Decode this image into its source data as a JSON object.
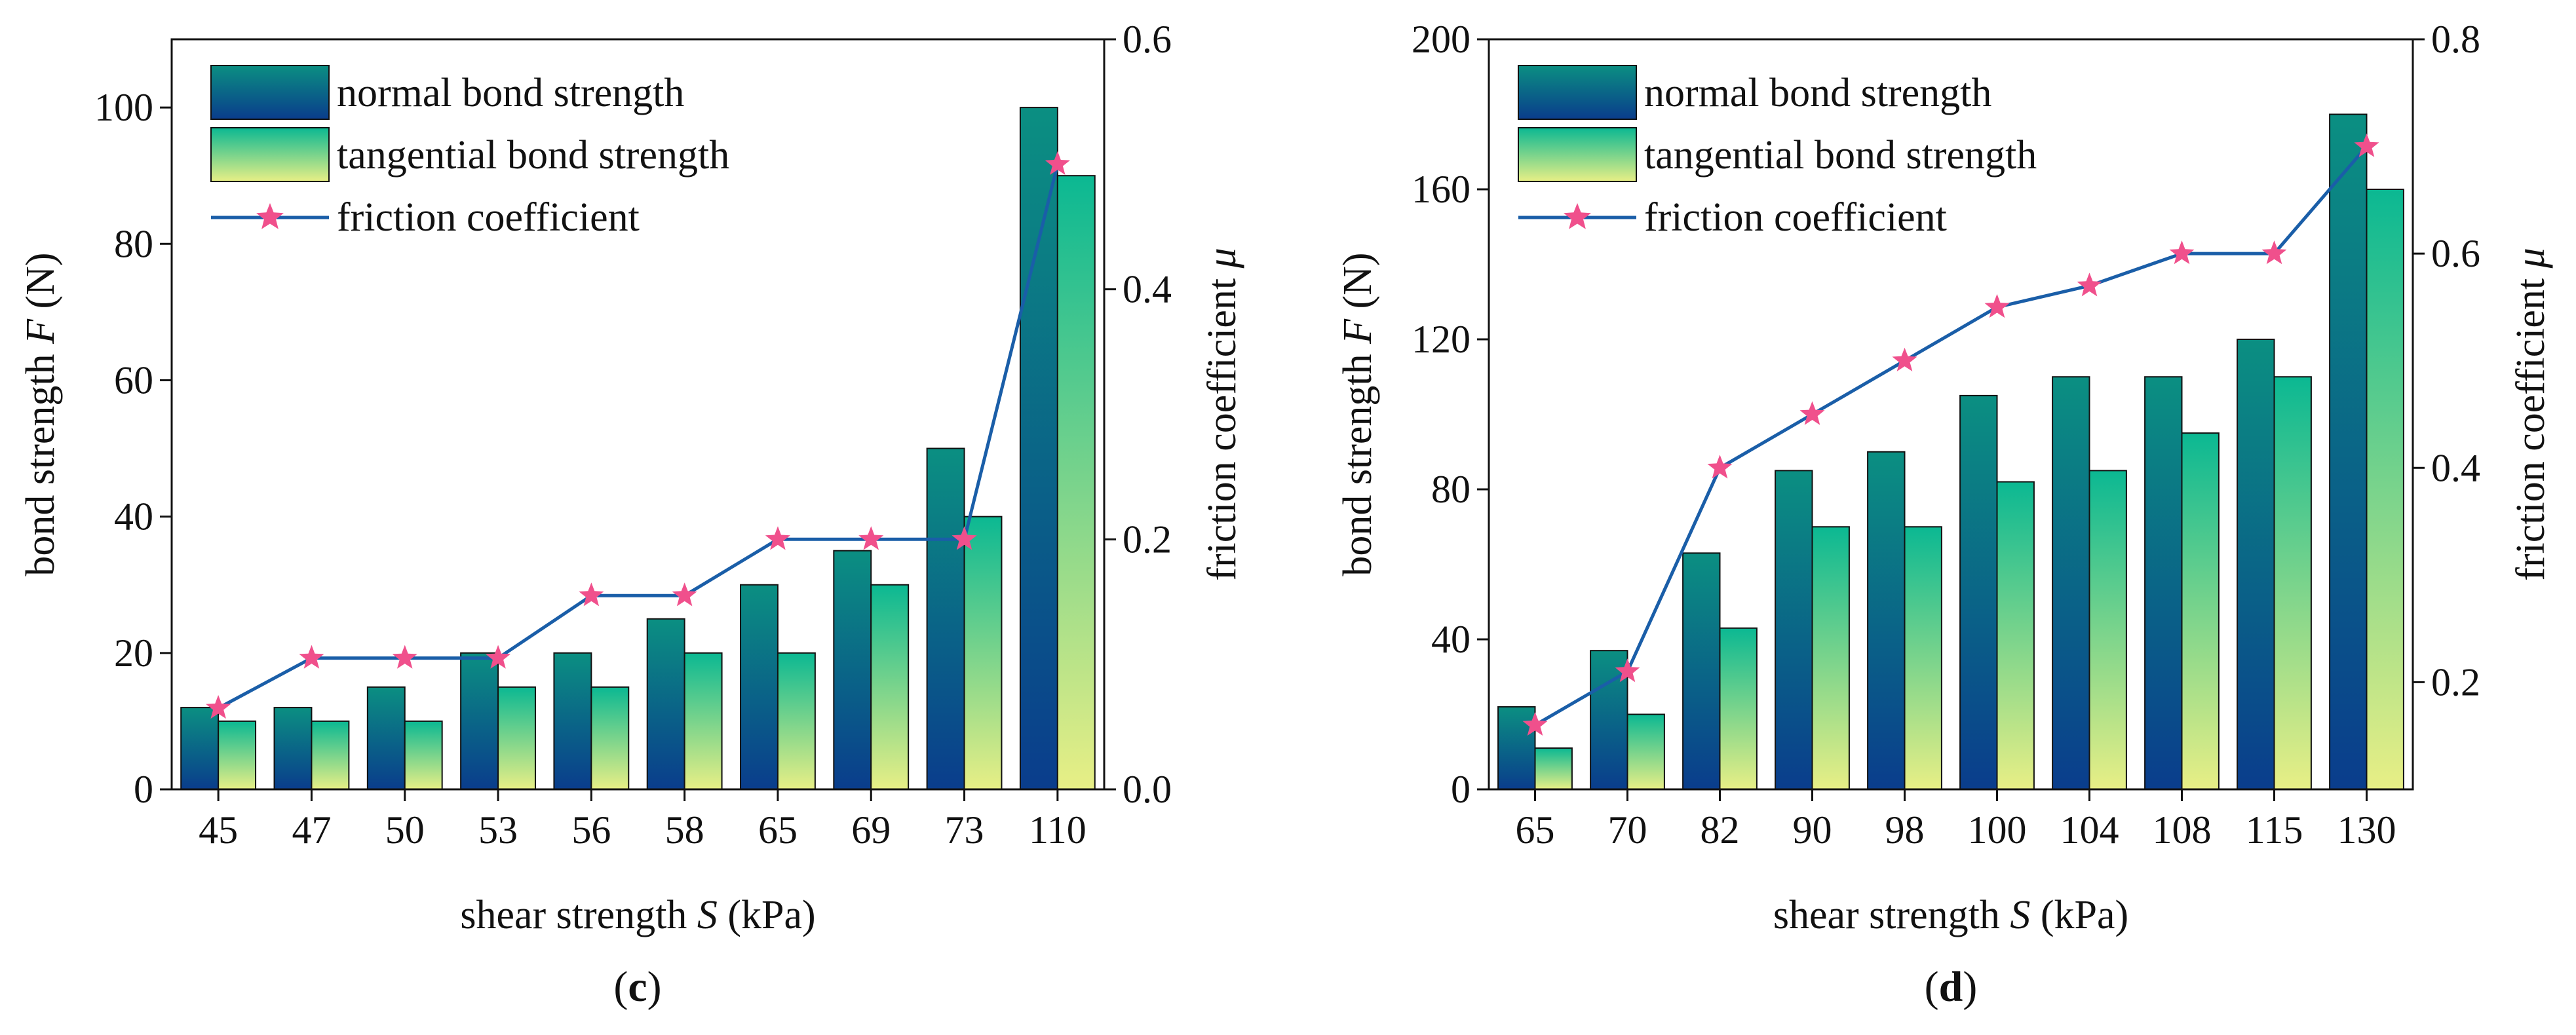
{
  "colors": {
    "normal_top": "#0b8f82",
    "normal_bottom": "#0a3d8c",
    "tangential_top": "#0bb892",
    "tangential_bottom": "#e8ef86",
    "friction_line": "#1a5ea8",
    "friction_marker": "#f0508c",
    "axis": "#111111"
  },
  "chart_data": [
    {
      "type": "bar",
      "panel_label_open": "(",
      "panel_label": "c",
      "panel_label_close": ")",
      "categories": [
        "45",
        "47",
        "50",
        "53",
        "56",
        "58",
        "65",
        "69",
        "73",
        "110"
      ],
      "series": [
        {
          "name": "normal bond strength",
          "axis": "left",
          "values": [
            12,
            12,
            15,
            20,
            20,
            25,
            30,
            35,
            50,
            100
          ]
        },
        {
          "name": "tangential bond strength",
          "axis": "left",
          "values": [
            10,
            10,
            10,
            15,
            15,
            20,
            20,
            30,
            40,
            90
          ]
        },
        {
          "name": "friction coefficient",
          "axis": "right",
          "type": "line",
          "values": [
            0.065,
            0.105,
            0.105,
            0.105,
            0.155,
            0.155,
            0.2,
            0.2,
            0.2,
            0.5
          ]
        }
      ],
      "xlabel": {
        "prefix": "shear strength ",
        "symbol": "S",
        "suffix": " (kPa)"
      },
      "ylabel": {
        "prefix": "bond strength ",
        "symbol": "F",
        "suffix": " (N)"
      },
      "y2label": {
        "prefix": "friction coefficient ",
        "symbol": "μ",
        "suffix": ""
      },
      "ylim": [
        0,
        110
      ],
      "yticks": [
        0,
        20,
        40,
        60,
        80,
        100
      ],
      "ytick_labels": [
        "0",
        "20",
        "40",
        "60",
        "80",
        "100"
      ],
      "y2lim": [
        0,
        0.6
      ],
      "y2ticks": [
        0,
        0.2,
        0.4,
        0.6
      ],
      "y2tick_labels": [
        "0.0",
        "0.2",
        "0.4",
        "0.6"
      ],
      "legend_position": "top-left",
      "grid": false
    },
    {
      "type": "bar",
      "panel_label_open": "(",
      "panel_label": "d",
      "panel_label_close": ")",
      "categories": [
        "65",
        "70",
        "82",
        "90",
        "98",
        "100",
        "104",
        "108",
        "115",
        "130"
      ],
      "series": [
        {
          "name": "normal bond strength",
          "axis": "left",
          "values": [
            22,
            37,
            63,
            85,
            90,
            105,
            110,
            110,
            120,
            180
          ]
        },
        {
          "name": "tangential bond strength",
          "axis": "left",
          "values": [
            11,
            20,
            43,
            70,
            70,
            82,
            85,
            95,
            110,
            160
          ]
        },
        {
          "name": "friction coefficient",
          "axis": "right",
          "type": "line",
          "values": [
            0.16,
            0.21,
            0.4,
            0.45,
            0.5,
            0.55,
            0.57,
            0.6,
            0.6,
            0.7
          ]
        }
      ],
      "xlabel": {
        "prefix": "shear strength ",
        "symbol": "S",
        "suffix": " (kPa)"
      },
      "ylabel": {
        "prefix": "bond strength ",
        "symbol": "F",
        "suffix": " (N)"
      },
      "y2label": {
        "prefix": "friction coefficient ",
        "symbol": "μ",
        "suffix": ""
      },
      "ylim": [
        0,
        200
      ],
      "yticks": [
        0,
        40,
        80,
        120,
        160,
        200
      ],
      "ytick_labels": [
        "0",
        "40",
        "80",
        "120",
        "160",
        "200"
      ],
      "y2lim": [
        0.1,
        0.8
      ],
      "y2ticks": [
        0.2,
        0.4,
        0.6,
        0.8
      ],
      "y2tick_labels": [
        "0.2",
        "0.4",
        "0.6",
        "0.8"
      ],
      "legend_position": "top-left",
      "grid": false
    }
  ]
}
